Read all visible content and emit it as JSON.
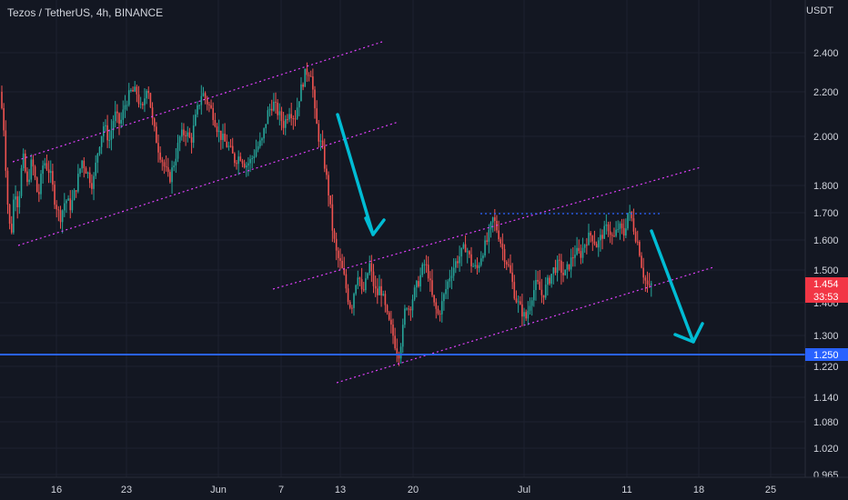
{
  "header": {
    "symbol_title": "Tezos / TetherUS, 4h, BINANCE",
    "currency": "USDT"
  },
  "chart_data": {
    "type": "candlestick",
    "x_tick_labels": [
      "16",
      "23",
      "Jun",
      "7",
      "13",
      "20",
      "Jul",
      "11",
      "18",
      "25"
    ],
    "y_tick_labels": [
      "2.400",
      "2.200",
      "2.000",
      "1.800",
      "1.700",
      "1.600",
      "1.500",
      "1.400",
      "1.300",
      "1.220",
      "1.140",
      "1.080",
      "1.020",
      "0.965"
    ],
    "y_tick_values": [
      2.4,
      2.2,
      2.0,
      1.8,
      1.7,
      1.6,
      1.5,
      1.4,
      1.3,
      1.22,
      1.14,
      1.08,
      1.02,
      0.965
    ],
    "ylim": [
      0.965,
      2.42
    ],
    "y_scale": "log",
    "up_color": "#26a69a",
    "down_color": "#ef5350",
    "last_price": {
      "price": "1.454",
      "countdown": "33:53",
      "color": "#f23645"
    },
    "support_line": {
      "price": "1.250",
      "value": 1.25,
      "color": "#2962ff"
    },
    "trend_line_color": "#e040fb",
    "arrow_color": "#00bcd4",
    "resistance_dotted_line": {
      "value": 1.7,
      "color": "#2962ff"
    },
    "price_path_approx": [
      [
        0,
        2.2
      ],
      [
        4,
        2.05
      ],
      [
        8,
        1.75
      ],
      [
        12,
        1.6
      ],
      [
        16,
        1.8
      ],
      [
        20,
        1.72
      ],
      [
        25,
        1.92
      ],
      [
        30,
        1.8
      ],
      [
        35,
        1.9
      ],
      [
        42,
        1.75
      ],
      [
        48,
        1.9
      ],
      [
        55,
        1.85
      ],
      [
        60,
        1.75
      ],
      [
        66,
        1.68
      ],
      [
        72,
        1.75
      ],
      [
        78,
        1.72
      ],
      [
        84,
        1.8
      ],
      [
        90,
        1.9
      ],
      [
        96,
        1.85
      ],
      [
        102,
        1.8
      ],
      [
        108,
        1.95
      ],
      [
        114,
        2.05
      ],
      [
        120,
        1.98
      ],
      [
        126,
        2.1
      ],
      [
        132,
        2.05
      ],
      [
        138,
        2.15
      ],
      [
        144,
        2.2
      ],
      [
        150,
        2.2
      ],
      [
        156,
        2.1
      ],
      [
        162,
        2.25
      ],
      [
        168,
        2.05
      ],
      [
        174,
        1.95
      ],
      [
        180,
        1.88
      ],
      [
        186,
        1.82
      ],
      [
        192,
        1.9
      ],
      [
        198,
        2.0
      ],
      [
        204,
        2.02
      ],
      [
        210,
        1.98
      ],
      [
        216,
        2.1
      ],
      [
        222,
        2.2
      ],
      [
        228,
        2.15
      ],
      [
        234,
        2.1
      ],
      [
        240,
        2.02
      ],
      [
        246,
        1.98
      ],
      [
        252,
        1.95
      ],
      [
        258,
        1.9
      ],
      [
        264,
        1.92
      ],
      [
        270,
        1.88
      ],
      [
        276,
        1.9
      ],
      [
        282,
        1.95
      ],
      [
        288,
        1.98
      ],
      [
        294,
        2.1
      ],
      [
        300,
        2.15
      ],
      [
        306,
        2.1
      ],
      [
        312,
        2.05
      ],
      [
        318,
        2.12
      ],
      [
        324,
        2.08
      ],
      [
        330,
        2.2
      ],
      [
        336,
        2.3
      ],
      [
        342,
        2.3
      ],
      [
        346,
        2.1
      ],
      [
        350,
        2.0
      ],
      [
        354,
        1.95
      ],
      [
        358,
        1.85
      ],
      [
        362,
        1.75
      ],
      [
        366,
        1.62
      ],
      [
        370,
        1.55
      ],
      [
        374,
        1.52
      ],
      [
        378,
        1.48
      ],
      [
        382,
        1.42
      ],
      [
        386,
        1.38
      ],
      [
        390,
        1.45
      ],
      [
        394,
        1.5
      ],
      [
        398,
        1.42
      ],
      [
        402,
        1.46
      ],
      [
        406,
        1.52
      ],
      [
        410,
        1.46
      ],
      [
        414,
        1.42
      ],
      [
        418,
        1.45
      ],
      [
        422,
        1.4
      ],
      [
        426,
        1.35
      ],
      [
        430,
        1.32
      ],
      [
        434,
        1.28
      ],
      [
        438,
        1.25
      ],
      [
        442,
        1.3
      ],
      [
        446,
        1.4
      ],
      [
        450,
        1.38
      ],
      [
        454,
        1.42
      ],
      [
        458,
        1.45
      ],
      [
        462,
        1.48
      ],
      [
        466,
        1.52
      ],
      [
        470,
        1.5
      ],
      [
        476,
        1.4
      ],
      [
        482,
        1.36
      ],
      [
        488,
        1.42
      ],
      [
        494,
        1.48
      ],
      [
        500,
        1.52
      ],
      [
        506,
        1.55
      ],
      [
        512,
        1.58
      ],
      [
        518,
        1.52
      ],
      [
        524,
        1.5
      ],
      [
        530,
        1.56
      ],
      [
        536,
        1.6
      ],
      [
        542,
        1.68
      ],
      [
        548,
        1.62
      ],
      [
        554,
        1.55
      ],
      [
        560,
        1.5
      ],
      [
        566,
        1.42
      ],
      [
        572,
        1.38
      ],
      [
        578,
        1.35
      ],
      [
        584,
        1.42
      ],
      [
        590,
        1.46
      ],
      [
        596,
        1.42
      ],
      [
        602,
        1.46
      ],
      [
        608,
        1.5
      ],
      [
        614,
        1.52
      ],
      [
        620,
        1.48
      ],
      [
        626,
        1.52
      ],
      [
        632,
        1.56
      ],
      [
        638,
        1.55
      ],
      [
        644,
        1.6
      ],
      [
        650,
        1.62
      ],
      [
        656,
        1.58
      ],
      [
        662,
        1.62
      ],
      [
        668,
        1.65
      ],
      [
        674,
        1.6
      ],
      [
        680,
        1.65
      ],
      [
        686,
        1.62
      ],
      [
        690,
        1.7
      ],
      [
        694,
        1.68
      ],
      [
        698,
        1.62
      ],
      [
        702,
        1.58
      ],
      [
        706,
        1.5
      ],
      [
        710,
        1.46
      ],
      [
        714,
        1.44
      ],
      [
        716,
        1.454
      ]
    ]
  }
}
